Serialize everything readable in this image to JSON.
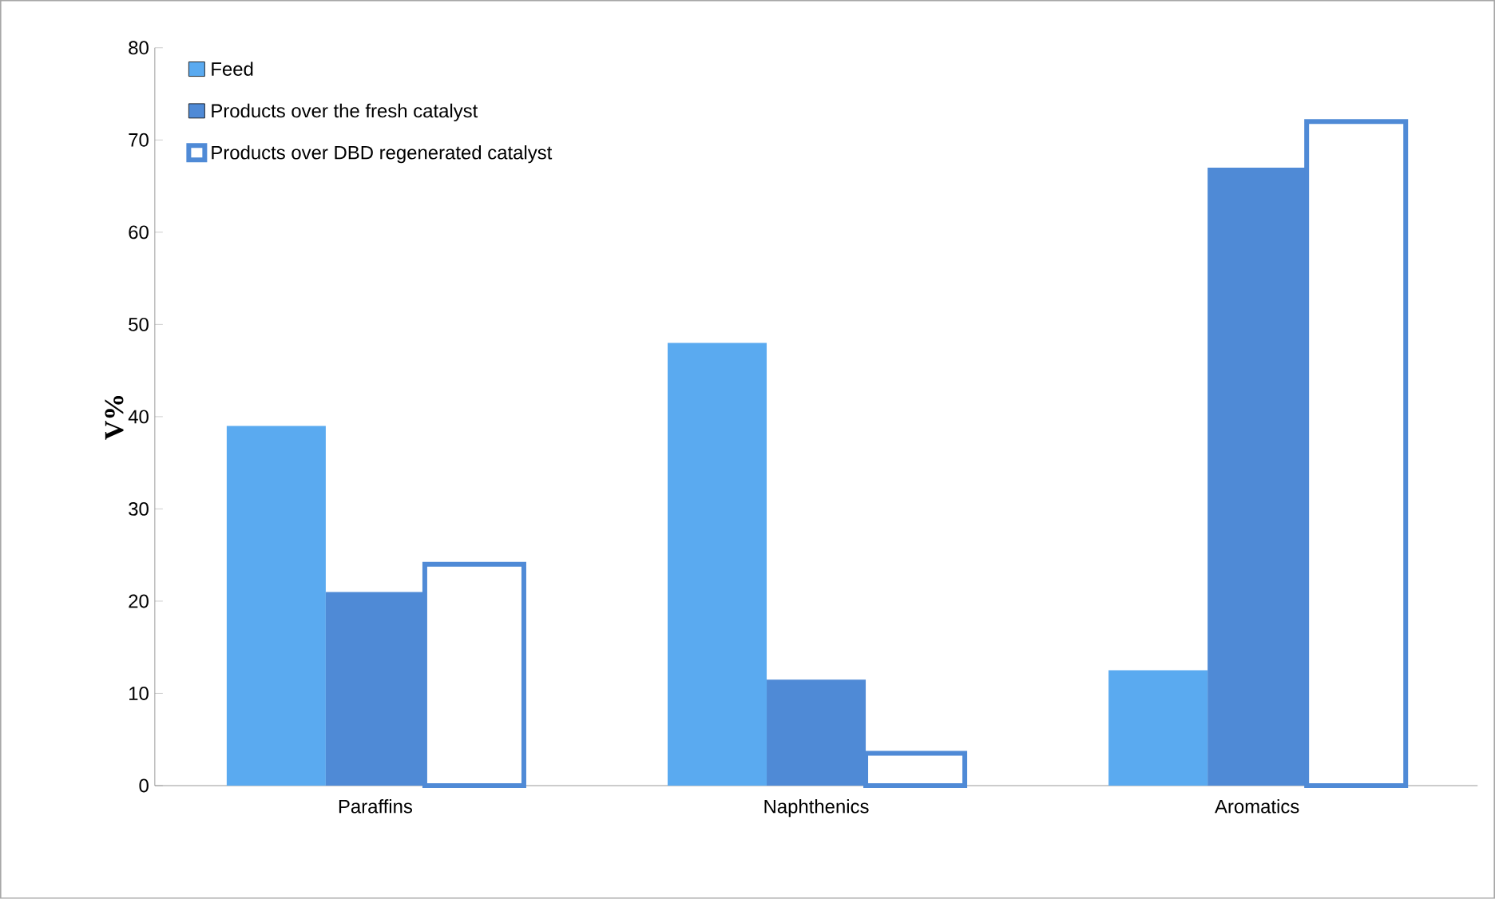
{
  "chart_data": {
    "type": "bar",
    "ylabel": "V%",
    "categories": [
      "Paraffins",
      "Naphthenics",
      "Aromatics"
    ],
    "series": [
      {
        "name": "Feed",
        "color": "#5aaaf0",
        "values": [
          39,
          48,
          12.5
        ]
      },
      {
        "name": "Products over the fresh catalyst",
        "color": "#4f8ad6",
        "values": [
          21,
          11.5,
          67
        ]
      },
      {
        "name": "Products over DBD regenerated catalyst",
        "color": "#4f8ad6",
        "values": [
          24,
          3.5,
          72
        ]
      }
    ],
    "ylim": [
      0,
      80
    ],
    "yticks": [
      0,
      10,
      20,
      30,
      40,
      50,
      60,
      70,
      80
    ],
    "grid": false,
    "legend": "top left"
  }
}
